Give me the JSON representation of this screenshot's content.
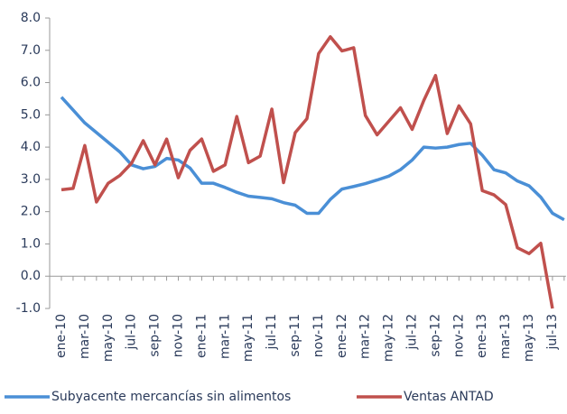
{
  "chart_data": {
    "type": "line",
    "categories": [
      "ene-10",
      null,
      "mar-10",
      null,
      "may-10",
      null,
      "jul-10",
      null,
      "sep-10",
      null,
      "nov-10",
      null,
      "ene-11",
      null,
      "mar-11",
      null,
      "may-11",
      null,
      "jul-11",
      null,
      "sep-11",
      null,
      "nov-11",
      null,
      "ene-12",
      null,
      "mar-12",
      null,
      "may-12",
      null,
      "jul-12",
      null,
      "sep-12",
      null,
      "nov-12",
      null,
      "ene-13",
      null,
      "mar-13",
      null,
      "may-13",
      null,
      "jul-13",
      null
    ],
    "series": [
      {
        "name": "Subyacente mercancías  sin alimentos",
        "color": "#4a8fd6",
        "values": [
          5.55,
          5.15,
          4.75,
          4.45,
          4.15,
          3.85,
          3.45,
          3.33,
          3.4,
          3.65,
          3.6,
          3.35,
          2.88,
          2.88,
          2.75,
          2.6,
          2.48,
          2.44,
          2.4,
          2.28,
          2.2,
          1.95,
          1.95,
          2.38,
          2.7,
          2.78,
          2.87,
          2.98,
          3.1,
          3.3,
          3.6,
          4.0,
          3.97,
          4.0,
          4.08,
          4.12,
          3.75,
          3.3,
          3.2,
          2.95,
          2.8,
          2.45,
          1.95,
          1.75
        ]
      },
      {
        "name": "Ventas ANTAD",
        "color": "#c0504d",
        "values": [
          2.68,
          2.72,
          4.05,
          2.3,
          2.88,
          3.12,
          3.5,
          4.2,
          3.45,
          4.25,
          3.05,
          3.9,
          4.25,
          3.25,
          3.45,
          4.95,
          3.52,
          3.72,
          5.18,
          2.9,
          4.45,
          4.88,
          6.9,
          7.42,
          6.98,
          7.08,
          4.98,
          4.38,
          4.8,
          5.22,
          4.55,
          5.45,
          6.22,
          4.42,
          5.28,
          4.72,
          2.65,
          2.52,
          2.22,
          0.88,
          0.7,
          1.02,
          -1.0,
          null
        ]
      }
    ],
    "ylim": [
      -1,
      8
    ],
    "yticks": [
      {
        "value": -1,
        "label": "-1.0"
      },
      {
        "value": 0,
        "label": "0.0"
      },
      {
        "value": 1,
        "label": "1.0"
      },
      {
        "value": 2,
        "label": "2.0"
      },
      {
        "value": 3,
        "label": "3.0"
      },
      {
        "value": 4,
        "label": "4.0"
      },
      {
        "value": 5,
        "label": "5.0"
      },
      {
        "value": 6,
        "label": "6.0"
      },
      {
        "value": 7,
        "label": "7.0"
      },
      {
        "value": 8,
        "label": "8.0"
      }
    ],
    "legend": "bottom"
  }
}
